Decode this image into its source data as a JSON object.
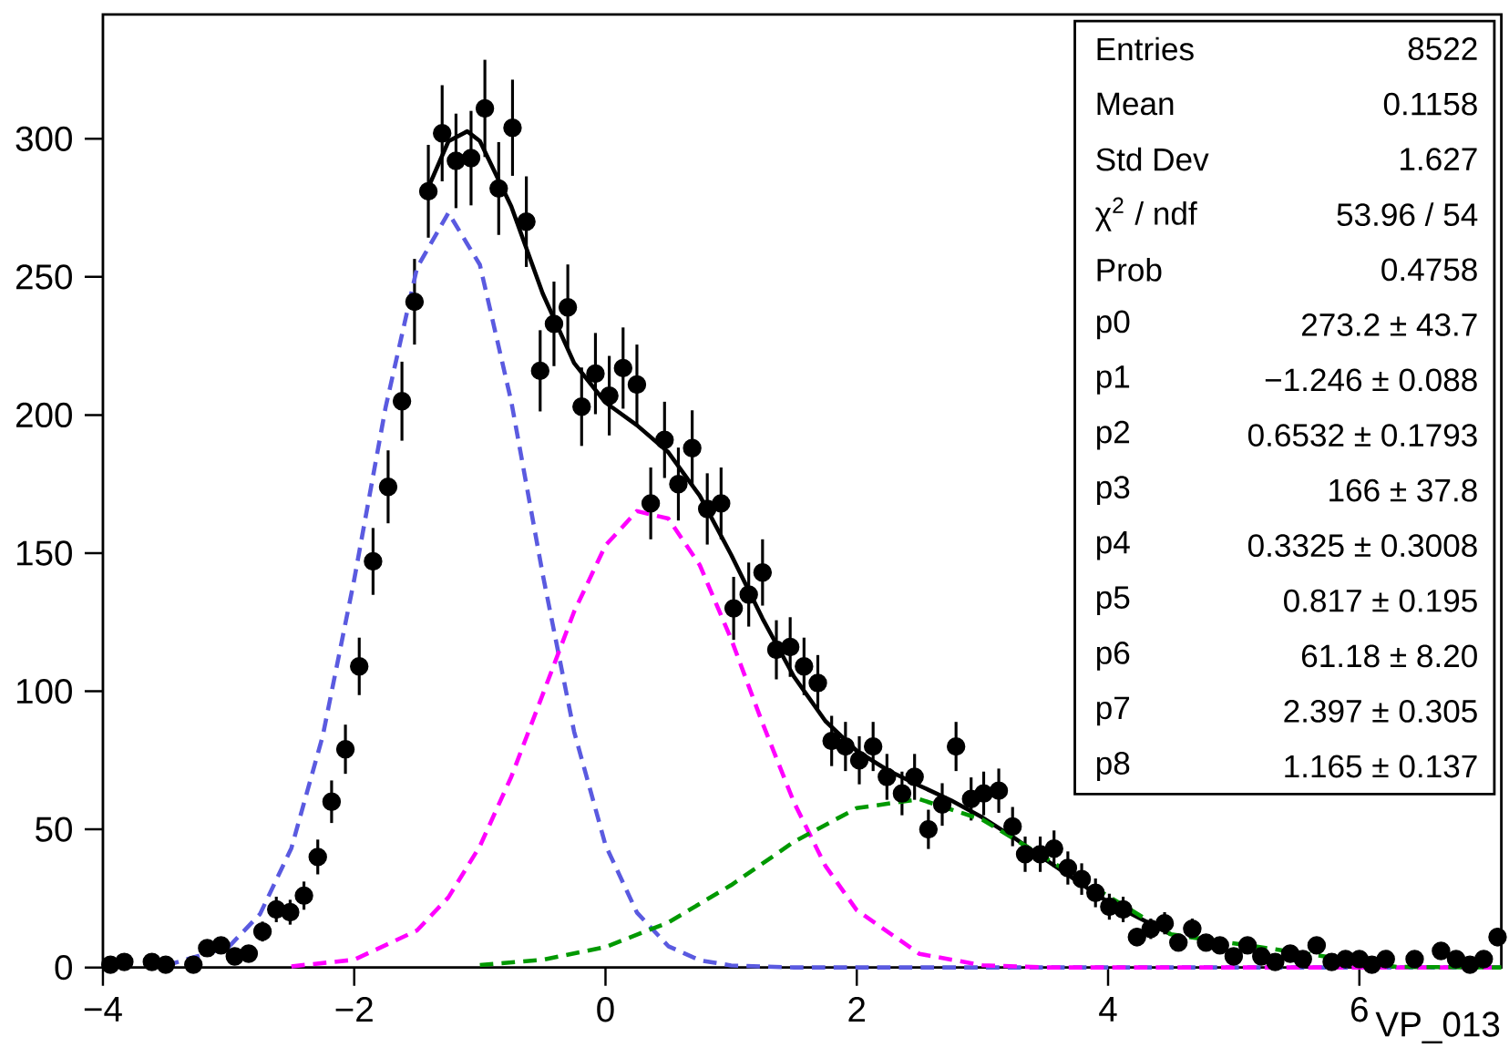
{
  "chart_data": {
    "type": "scatter",
    "xlabel": "VP_013",
    "xlim": [
      -4,
      7.13
    ],
    "ylim": [
      0,
      345
    ],
    "xticks": [
      {
        "value": -4,
        "label": "−4"
      },
      {
        "value": -2,
        "label": "−2"
      },
      0,
      2,
      4,
      6
    ],
    "yticks": [
      0,
      50,
      100,
      150,
      200,
      250,
      300
    ],
    "annotations": [
      "Entries",
      "8522",
      "Mean",
      "0.1158",
      "Std Dev",
      "1.627",
      "χ$^{2}$ / ndf",
      "53.96 / 54",
      "Prob",
      "0.4758",
      "p0",
      "273.2 ± 43.7",
      "p1",
      "−1.246 ± 0.088",
      "p2",
      "0.6532 ± 0.1793",
      "p3",
      "166 ± 37.8",
      "p4",
      "0.3325 ± 0.3008",
      "p5",
      "0.817 ± 0.195",
      "p6",
      "61.18 ± 8.20",
      "p7",
      "2.397 ± 0.305",
      "p8",
      "1.165 ± 0.137"
    ],
    "series": [
      {
        "color": "#000000",
        "marker": "circle",
        "x": [
          -3.94,
          -3.83,
          -3.61,
          -3.5,
          -3.28,
          -3.17,
          -3.06,
          -2.95,
          -2.84,
          -2.73,
          -2.62,
          -2.51,
          -2.4,
          -2.29,
          -2.18,
          -2.07,
          -1.96,
          -1.85,
          -1.73,
          -1.62,
          -1.52,
          -1.41,
          -1.3,
          -1.19,
          -1.07,
          -0.96,
          -0.85,
          -0.74,
          -0.63,
          -0.52,
          -0.41,
          -0.3,
          -0.19,
          -0.08,
          0.03,
          0.14,
          0.25,
          0.36,
          0.47,
          0.58,
          0.69,
          0.81,
          0.92,
          1.02,
          1.14,
          1.25,
          1.36,
          1.47,
          1.58,
          1.69,
          1.8,
          1.91,
          2.02,
          2.13,
          2.24,
          2.36,
          2.46,
          2.57,
          2.68,
          2.79,
          2.91,
          3.01,
          3.13,
          3.24,
          3.34,
          3.46,
          3.57,
          3.68,
          3.79,
          3.9,
          4.01,
          4.12,
          4.23,
          4.34,
          4.45,
          4.56,
          4.67,
          4.78,
          4.89,
          5.0,
          5.11,
          5.22,
          5.33,
          5.45,
          5.55,
          5.66,
          5.78,
          5.89,
          6.0,
          6.1,
          6.21,
          6.44,
          6.65,
          6.77,
          6.88,
          6.99,
          7.1
        ],
        "values": [
          1,
          2,
          2,
          1,
          1,
          7,
          8,
          4,
          5,
          13,
          21,
          20,
          26,
          40,
          60,
          79,
          109,
          147,
          174,
          205,
          241,
          281,
          302,
          292,
          293,
          311,
          282,
          304,
          270,
          216,
          233,
          239,
          203,
          215,
          207,
          217,
          211,
          168,
          191,
          175,
          188,
          166,
          168,
          130,
          135,
          143,
          115,
          116,
          109,
          103,
          82,
          80,
          75,
          80,
          69,
          63,
          69,
          50,
          59,
          80,
          61,
          63,
          64,
          51,
          41,
          41,
          43,
          36,
          32,
          27,
          22,
          21,
          11,
          14,
          16,
          9,
          14,
          9,
          8,
          4,
          8,
          4,
          2,
          5,
          3,
          8,
          2,
          3,
          3,
          1,
          3,
          3,
          6,
          3,
          1,
          3,
          11
        ],
        "errors": [
          null,
          null,
          null,
          null,
          null,
          null,
          null,
          null,
          null,
          3.6,
          4.6,
          4.5,
          5.1,
          6.3,
          7.7,
          8.9,
          10.4,
          12.1,
          13.2,
          14.3,
          15.5,
          16.8,
          17.4,
          17.1,
          17.1,
          17.6,
          16.8,
          17.4,
          16.4,
          14.7,
          15.3,
          15.5,
          14.2,
          14.7,
          14.4,
          14.7,
          14.5,
          13,
          13.8,
          13.2,
          13.7,
          12.9,
          13,
          11.4,
          11.6,
          12,
          10.7,
          10.8,
          10.4,
          10.1,
          9.1,
          8.9,
          8.7,
          8.9,
          8.3,
          7.9,
          8.3,
          7.1,
          7.7,
          8.9,
          7.8,
          7.9,
          8,
          7.1,
          6.4,
          6.4,
          6.6,
          6,
          5.7,
          5.2,
          4.7,
          4.6,
          3.3,
          3.7,
          4,
          null,
          3.7,
          null,
          null,
          null,
          null,
          null,
          null,
          null,
          null,
          null,
          null,
          null,
          null,
          null,
          null,
          null,
          null,
          null,
          null,
          null,
          3.3
        ]
      },
      {
        "type": "line",
        "color": "#000000",
        "line_style": "solid",
        "marker": "none",
        "x": [
          -1.4,
          -1.25,
          -1.1,
          -1.0,
          -0.75,
          -0.5,
          -0.25,
          0,
          0.25,
          0.5,
          0.75,
          1,
          1.25,
          1.5,
          1.75,
          2,
          2.25,
          2.5,
          2.75,
          3,
          3.25,
          3.5,
          4,
          4.5
        ],
        "values": [
          283.4,
          299.1,
          302.7,
          299.2,
          275.5,
          244.0,
          218.8,
          204.5,
          196.3,
          186.5,
          170.8,
          149.4,
          126.3,
          105.3,
          89.2,
          78.4,
          71.3,
          65.8,
          60.5,
          54.3,
          47.0,
          39.1,
          23.7,
          12.0
        ]
      },
      {
        "type": "line",
        "color": "#5a5ae0",
        "line_style": "dashed",
        "marker": "none",
        "x": [
          -3.5,
          -3,
          -2.75,
          -2.5,
          -2.25,
          -2,
          -1.75,
          -1.5,
          -1.25,
          -1,
          -0.75,
          -0.5,
          -0.25,
          0,
          0.25,
          0.5,
          0.75,
          1,
          1.5,
          7.13
        ],
        "values": [
          0.7,
          7.4,
          19.3,
          43.2,
          83.9,
          140.4,
          202.8,
          253.3,
          273.2,
          254.4,
          204.9,
          142.4,
          85.4,
          44.3,
          19.9,
          7.7,
          2.6,
          0.7,
          0,
          0
        ]
      },
      {
        "type": "line",
        "color": "#ff00ff",
        "line_style": "dashed",
        "marker": "none",
        "x": [
          -2.5,
          -2,
          -1.5,
          -1.25,
          -1,
          -0.75,
          -0.5,
          -0.25,
          0,
          0.25,
          0.5,
          0.75,
          1,
          1.25,
          1.5,
          1.75,
          2,
          2.5,
          3,
          3.5,
          7.13
        ],
        "values": [
          0.4,
          2.8,
          13.4,
          25.4,
          43.9,
          69.0,
          98.8,
          128.8,
          152.8,
          165.2,
          162.5,
          145.7,
          118.9,
          88.4,
          59.8,
          36.8,
          20.7,
          4.9,
          0.8,
          0,
          0
        ]
      },
      {
        "type": "line",
        "color": "#009900",
        "line_style": "dashed",
        "marker": "none",
        "x": [
          -1,
          -0.5,
          0,
          0.5,
          1,
          1.5,
          2,
          2.5,
          3,
          4.5,
          6.3,
          7.13
        ],
        "values": [
          0.9,
          2.8,
          7.4,
          16.3,
          29.8,
          45.5,
          57.7,
          60.9,
          53.5,
          12.0,
          0.2,
          0
        ]
      }
    ]
  }
}
